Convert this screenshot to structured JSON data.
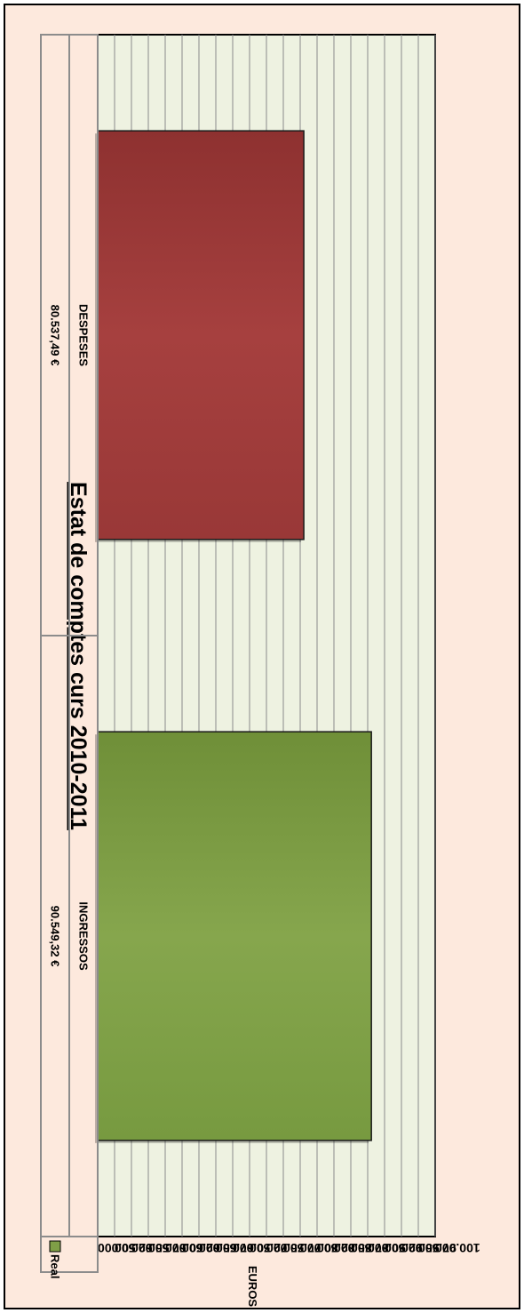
{
  "chart_data": {
    "type": "bar",
    "title": "Estat de comptes curs 2010-2011",
    "ylabel": "EUROS",
    "ylim": [
      50000,
      100000
    ],
    "y_ticks": [
      "100.000",
      "97.500",
      "95.000",
      "92.500",
      "90.000",
      "87.500",
      "85.000",
      "82.500",
      "80.000",
      "77.500",
      "75.000",
      "72.500",
      "70.000",
      "67.500",
      "65.000",
      "62.500",
      "60.000",
      "57.500",
      "55.000",
      "52.500",
      "50.000"
    ],
    "tick_values": [
      100000,
      97500,
      95000,
      92500,
      90000,
      87500,
      85000,
      82500,
      80000,
      77500,
      75000,
      72500,
      70000,
      67500,
      65000,
      62500,
      60000,
      57500,
      55000,
      52500,
      50000
    ],
    "categories": [
      "INGRESSOS",
      "DESPESES"
    ],
    "series": [
      {
        "name": "Real",
        "values": [
          90549.32,
          80537.49
        ],
        "value_labels": [
          "90.549,32 €",
          "80.537,49 €"
        ],
        "colors": [
          "#7f9f47",
          "#a03c3b"
        ]
      }
    ],
    "legend": {
      "label": "Real",
      "color": "#7f9f47",
      "position": "bottom-left"
    },
    "orientation": "rotated 90 degrees clockwise",
    "grid": true,
    "colors": {
      "page_background": "#fde9dd",
      "plot_background": "#eef2e1",
      "grid": "#8a8a8a"
    }
  }
}
